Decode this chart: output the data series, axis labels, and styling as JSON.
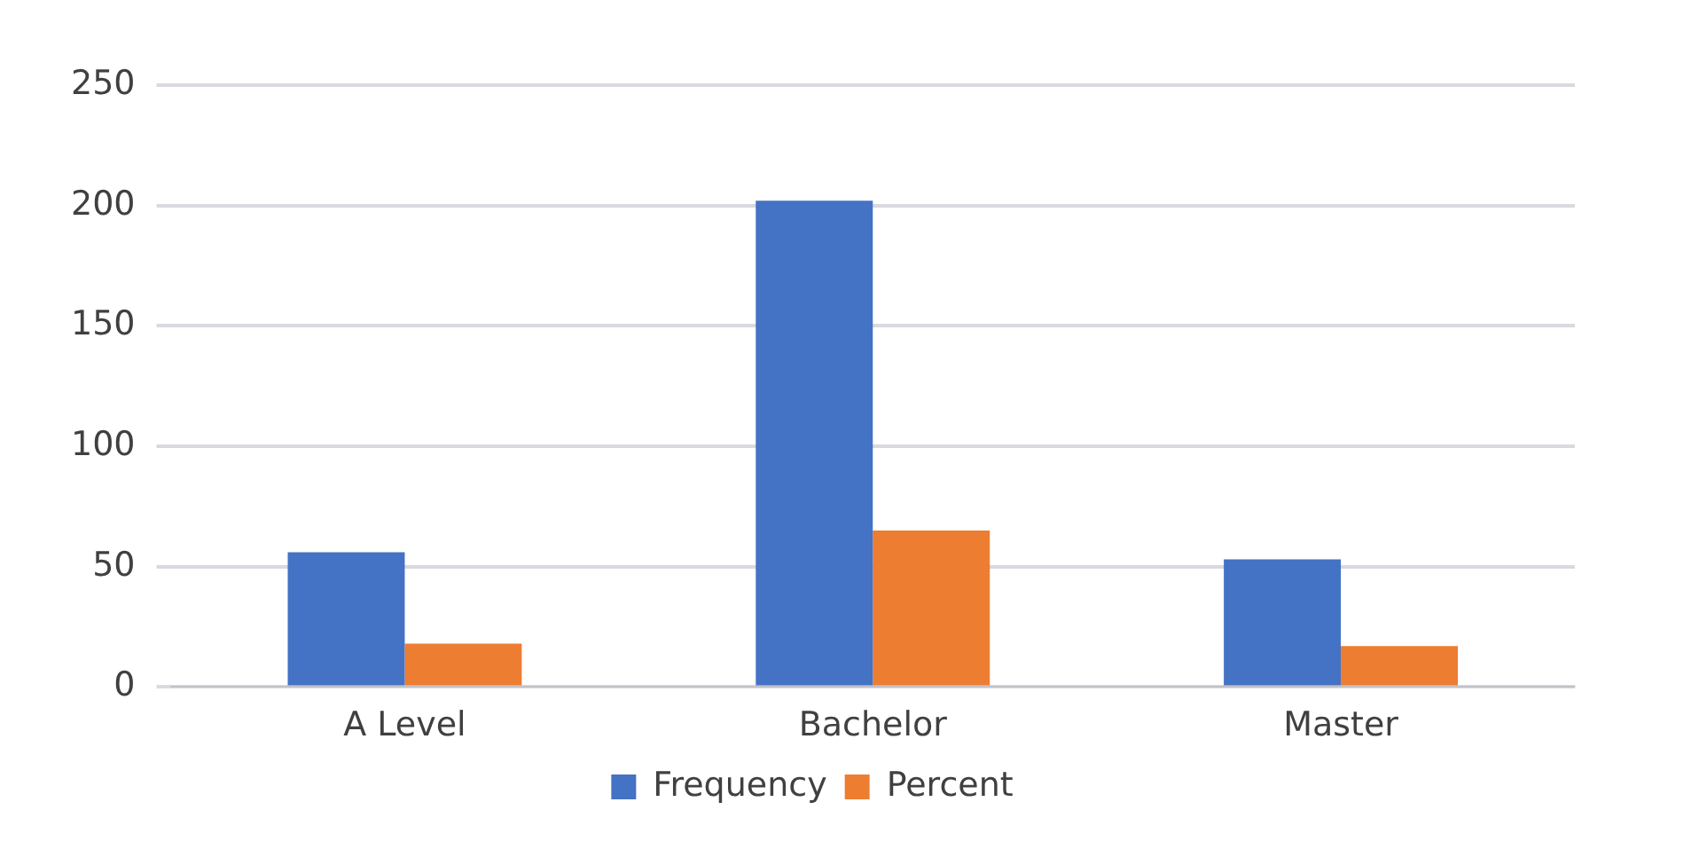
{
  "chart_data": {
    "type": "bar",
    "categories": [
      "A Level",
      "Bachelor",
      "Master"
    ],
    "series": [
      {
        "name": "Frequency",
        "color": "#4472c4",
        "values": [
          56,
          202,
          53
        ]
      },
      {
        "name": "Percent",
        "color": "#ed7d31",
        "values": [
          18,
          65,
          17
        ]
      }
    ],
    "ylim": [
      0,
      250
    ],
    "yticks": [
      0,
      50,
      100,
      150,
      200,
      250
    ],
    "grid": "y",
    "legend": "bottom"
  }
}
